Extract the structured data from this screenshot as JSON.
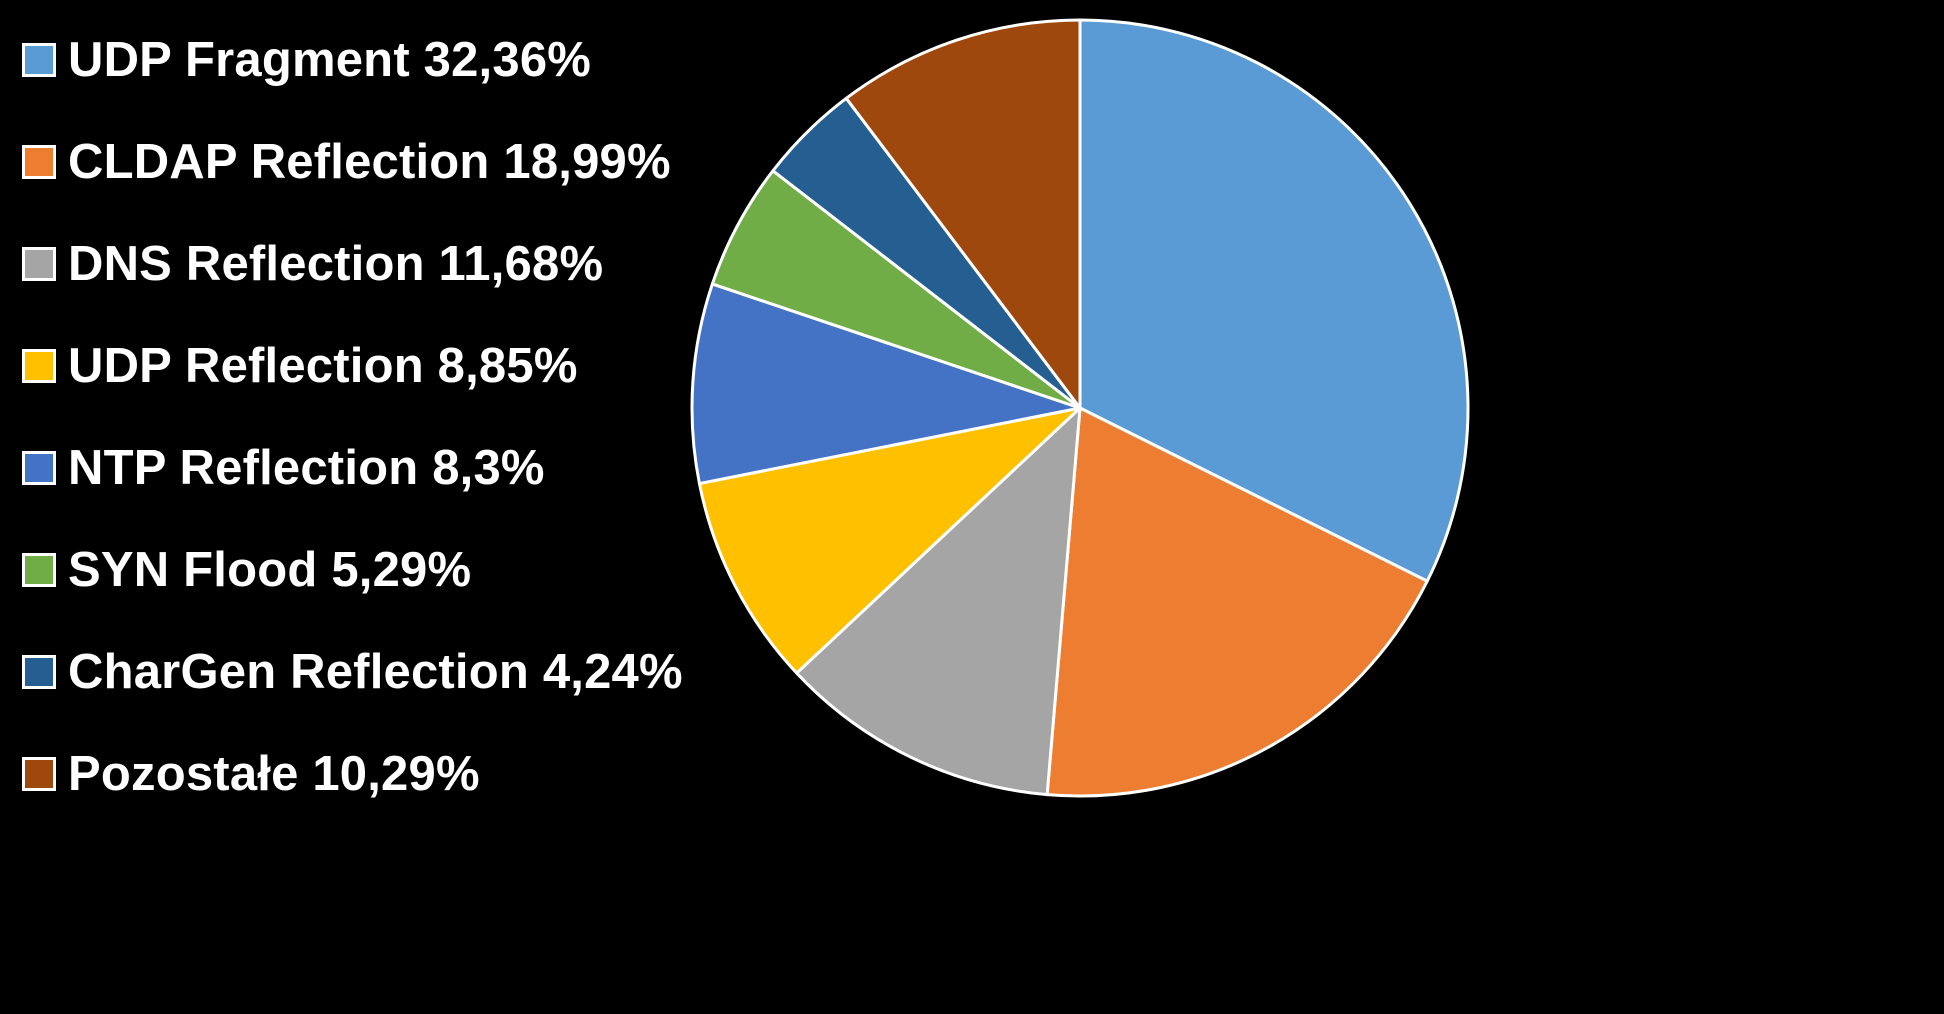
{
  "chart_data": {
    "type": "pie",
    "slices": [
      {
        "label": "UDP Fragment 32,36%",
        "value": 32.36,
        "color": "#5B9BD5"
      },
      {
        "label": "CLDAP Reflection 18,99%",
        "value": 18.99,
        "color": "#ED7D31"
      },
      {
        "label": "DNS Reflection 11,68%",
        "value": 11.68,
        "color": "#A5A5A5"
      },
      {
        "label": "UDP Reflection 8,85%",
        "value": 8.85,
        "color": "#FFC000"
      },
      {
        "label": "NTP Reflection 8,3%",
        "value": 8.3,
        "color": "#4472C4"
      },
      {
        "label": "SYN Flood 5,29%",
        "value": 5.29,
        "color": "#70AD47"
      },
      {
        "label": "CharGen Reflection 4,24%",
        "value": 4.24,
        "color": "#255E91"
      },
      {
        "label": "Pozostałe 10,29%",
        "value": 10.29,
        "color": "#9E480E"
      }
    ],
    "legend_position": "left",
    "background": "#000000",
    "slice_border_color": "#FFFFFF",
    "start_angle": "12 o'clock",
    "direction": "clockwise"
  }
}
